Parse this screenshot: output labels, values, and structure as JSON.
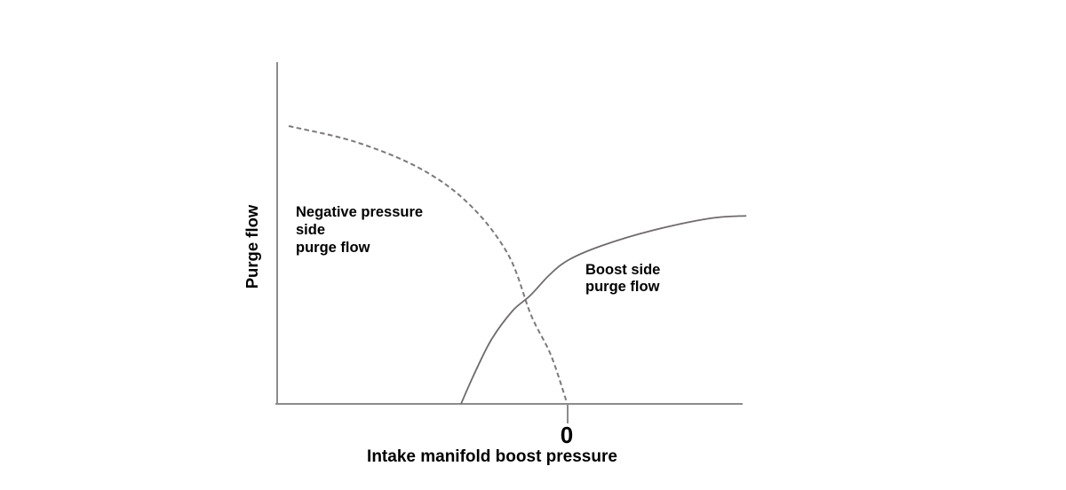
{
  "page": {
    "background": "#ffffff"
  },
  "colors": {
    "axis": "#8c8c8c",
    "text": "#000000"
  },
  "chart_data": {
    "type": "line",
    "title": "",
    "xlabel": "Intake manifold boost pressure",
    "ylabel": "Purge flow",
    "x_ticks": [
      {
        "label": "0",
        "x": 0
      }
    ],
    "axis": {
      "x_range": [
        -100,
        62
      ],
      "y_range": [
        0,
        1.23
      ],
      "grid": false,
      "note": "qualitative diagram; axes unscaled, only x = 0 is labeled"
    },
    "annotations": [
      {
        "id": "negative-pressure-side",
        "lines": [
          "Negative pressure",
          "side",
          "purge flow"
        ]
      },
      {
        "id": "boost-side",
        "lines": [
          "Boost side",
          "purge flow"
        ]
      }
    ],
    "series": [
      {
        "id": "negative-pressure-side-purge-flow",
        "name": "Negative pressure side purge flow",
        "style": "dashed",
        "color": "#7d7979",
        "points": [
          [
            -96.0,
            1.0
          ],
          [
            -73.0,
            0.943
          ],
          [
            -50.6,
            0.847
          ],
          [
            -33.7,
            0.719
          ],
          [
            -20.2,
            0.537
          ],
          [
            -12.3,
            0.319
          ],
          [
            -5.5,
            0.176
          ],
          [
            0.0,
            0.006
          ]
        ]
      },
      {
        "id": "boost-side-purge-flow",
        "name": "Boost side purge flow",
        "style": "solid",
        "color": "#6f6b6b",
        "points": [
          [
            -36.5,
            0.0
          ],
          [
            -32.2,
            0.102
          ],
          [
            -26.1,
            0.23
          ],
          [
            -18.7,
            0.335
          ],
          [
            -12.6,
            0.39
          ],
          [
            -6.1,
            0.463
          ],
          [
            0.6,
            0.518
          ],
          [
            12.0,
            0.569
          ],
          [
            29.1,
            0.623
          ],
          [
            49.7,
            0.668
          ],
          [
            62.0,
            0.677
          ]
        ]
      }
    ]
  }
}
